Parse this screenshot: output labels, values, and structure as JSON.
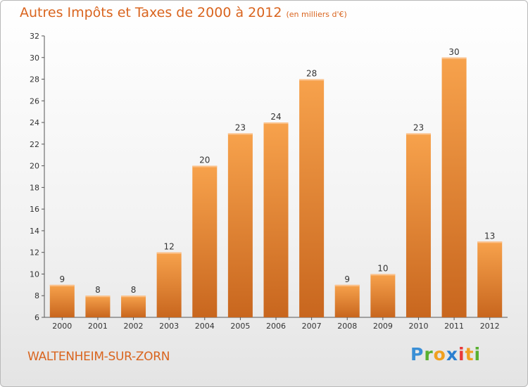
{
  "title": "Autres Impôts et Taxes de 2000 à 2012",
  "subtitle": "(en milliers d'€)",
  "town": "WALTENHEIM-SUR-ZORN",
  "brand": "Proxiti",
  "colors": {
    "bar": "#f0923a",
    "bar_dark": "#c8661e",
    "title": "#d9641e"
  },
  "chart_data": {
    "type": "bar",
    "title": "Autres Impôts et Taxes de 2000 à 2012",
    "subtitle": "(en milliers d'€)",
    "categories": [
      "2000",
      "2001",
      "2002",
      "2003",
      "2004",
      "2005",
      "2006",
      "2007",
      "2008",
      "2009",
      "2010",
      "2011",
      "2012"
    ],
    "values": [
      9,
      8,
      8,
      12,
      20,
      23,
      24,
      28,
      9,
      10,
      23,
      30,
      13
    ],
    "ylim": [
      6,
      32
    ],
    "yticks": [
      6,
      8,
      10,
      12,
      14,
      16,
      18,
      20,
      22,
      24,
      26,
      28,
      30,
      32
    ],
    "grid": false,
    "legend": "none"
  }
}
